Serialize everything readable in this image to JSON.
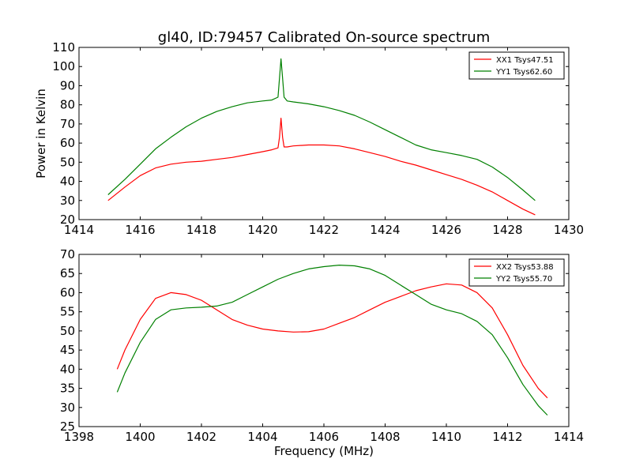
{
  "title": "gl40, ID:79457 Calibrated On-source spectrum",
  "colors": {
    "red": "#ff0000",
    "green": "#008000",
    "axis": "#000000"
  },
  "chart_data": [
    {
      "type": "line",
      "ylabel": "Power in Kelvin",
      "xlabel": "",
      "xlim": [
        1414,
        1430
      ],
      "ylim": [
        20,
        110
      ],
      "xticks": [
        "1414",
        "1416",
        "1418",
        "1420",
        "1422",
        "1424",
        "1426",
        "1428",
        "1430"
      ],
      "yticks": [
        "20",
        "30",
        "40",
        "50",
        "60",
        "70",
        "80",
        "90",
        "100",
        "110"
      ],
      "grid": false,
      "legend_position": "top-right",
      "series": [
        {
          "name": "XX1 Tsys47.51",
          "color": "#ff0000",
          "x": [
            1414.95,
            1415.5,
            1416,
            1416.5,
            1417,
            1417.5,
            1418,
            1418.5,
            1419,
            1419.5,
            1420,
            1420.3,
            1420.5,
            1420.55,
            1420.6,
            1420.65,
            1420.7,
            1420.8,
            1421,
            1421.5,
            1422,
            1422.5,
            1423,
            1423.5,
            1424,
            1424.5,
            1425,
            1425.5,
            1426,
            1426.5,
            1427,
            1427.5,
            1428,
            1428.5,
            1428.9
          ],
          "y": [
            30,
            37,
            43,
            47,
            49,
            50,
            50.5,
            51.5,
            52.5,
            54,
            55.5,
            56.5,
            57.5,
            63,
            73,
            63,
            58,
            58,
            58.5,
            59,
            59,
            58.5,
            57,
            55,
            53,
            50.5,
            48.5,
            46,
            43.5,
            41,
            38,
            34.5,
            30,
            25.5,
            22.5
          ]
        },
        {
          "name": "YY1 Tsys62.60",
          "color": "#008000",
          "x": [
            1414.95,
            1415.5,
            1416,
            1416.5,
            1417,
            1417.5,
            1418,
            1418.5,
            1419,
            1419.5,
            1420,
            1420.3,
            1420.5,
            1420.55,
            1420.6,
            1420.65,
            1420.7,
            1420.8,
            1421,
            1421.5,
            1422,
            1422.5,
            1423,
            1423.5,
            1424,
            1424.5,
            1425,
            1425.5,
            1426,
            1426.5,
            1427,
            1427.5,
            1428,
            1428.5,
            1428.9
          ],
          "y": [
            33,
            41,
            49,
            57,
            63,
            68.5,
            73,
            76.5,
            79,
            81,
            82,
            82.5,
            84,
            94,
            104,
            94,
            84,
            82,
            81.5,
            80.5,
            79,
            77,
            74.5,
            71,
            67,
            63,
            59,
            56.5,
            55,
            53.5,
            51.5,
            47.5,
            42,
            35.5,
            30
          ]
        }
      ]
    },
    {
      "type": "line",
      "ylabel": "",
      "xlabel": "Frequency (MHz)",
      "xlim": [
        1398,
        1414
      ],
      "ylim": [
        25,
        70
      ],
      "xticks": [
        "1398",
        "1400",
        "1402",
        "1404",
        "1406",
        "1408",
        "1410",
        "1412",
        "1414"
      ],
      "yticks": [
        "25",
        "30",
        "35",
        "40",
        "45",
        "50",
        "55",
        "60",
        "65",
        "70"
      ],
      "grid": false,
      "legend_position": "top-right",
      "series": [
        {
          "name": "XX2 Tsys53.88",
          "color": "#ff0000",
          "x": [
            1399.25,
            1399.5,
            1400,
            1400.5,
            1401,
            1401.5,
            1402,
            1402.5,
            1403,
            1403.5,
            1404,
            1404.5,
            1405,
            1405.5,
            1406,
            1406.5,
            1407,
            1407.5,
            1408,
            1408.5,
            1409,
            1409.5,
            1410,
            1410.5,
            1411,
            1411.5,
            1412,
            1412.5,
            1413,
            1413.3
          ],
          "y": [
            40,
            45,
            53,
            58.5,
            60,
            59.5,
            58,
            55.5,
            53,
            51.5,
            50.5,
            50,
            49.7,
            49.8,
            50.5,
            52,
            53.5,
            55.5,
            57.5,
            59,
            60.5,
            61.5,
            62.3,
            62,
            60,
            56,
            49,
            41,
            35,
            32.5
          ]
        },
        {
          "name": "YY2 Tsys55.70",
          "color": "#008000",
          "x": [
            1399.25,
            1399.5,
            1400,
            1400.5,
            1401,
            1401.5,
            1402,
            1402.5,
            1403,
            1403.5,
            1404,
            1404.5,
            1405,
            1405.5,
            1406,
            1406.5,
            1407,
            1407.5,
            1408,
            1408.5,
            1409,
            1409.5,
            1410,
            1410.5,
            1411,
            1411.5,
            1412,
            1412.5,
            1413,
            1413.3
          ],
          "y": [
            34,
            39,
            47,
            53,
            55.5,
            56,
            56.2,
            56.5,
            57.5,
            59.5,
            61.5,
            63.5,
            65,
            66.2,
            66.8,
            67.2,
            67,
            66.2,
            64.5,
            62,
            59.5,
            57,
            55.5,
            54.5,
            52.5,
            49,
            43,
            36,
            30.5,
            28
          ]
        }
      ]
    }
  ]
}
